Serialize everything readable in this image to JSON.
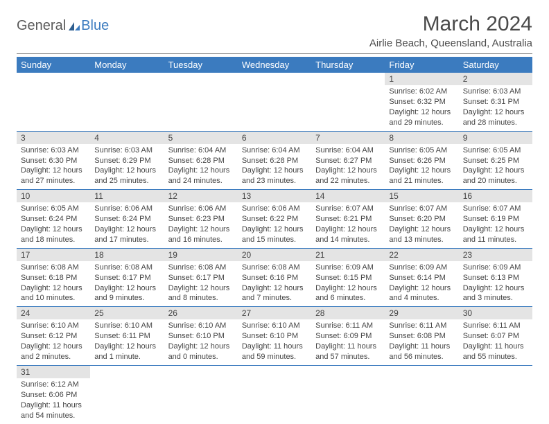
{
  "logo": {
    "general": "General",
    "blue": "Blue"
  },
  "title": "March 2024",
  "location": "Airlie Beach, Queensland, Australia",
  "colors": {
    "header_bg": "#3b7bbf",
    "header_text": "#ffffff",
    "daynum_bg": "#e4e4e4",
    "border": "#3b7bbf",
    "text": "#444444"
  },
  "weekdays": [
    "Sunday",
    "Monday",
    "Tuesday",
    "Wednesday",
    "Thursday",
    "Friday",
    "Saturday"
  ],
  "weeks": [
    [
      null,
      null,
      null,
      null,
      null,
      {
        "d": "1",
        "sr": "6:02 AM",
        "ss": "6:32 PM",
        "dl": "12 hours and 29 minutes."
      },
      {
        "d": "2",
        "sr": "6:03 AM",
        "ss": "6:31 PM",
        "dl": "12 hours and 28 minutes."
      }
    ],
    [
      {
        "d": "3",
        "sr": "6:03 AM",
        "ss": "6:30 PM",
        "dl": "12 hours and 27 minutes."
      },
      {
        "d": "4",
        "sr": "6:03 AM",
        "ss": "6:29 PM",
        "dl": "12 hours and 25 minutes."
      },
      {
        "d": "5",
        "sr": "6:04 AM",
        "ss": "6:28 PM",
        "dl": "12 hours and 24 minutes."
      },
      {
        "d": "6",
        "sr": "6:04 AM",
        "ss": "6:28 PM",
        "dl": "12 hours and 23 minutes."
      },
      {
        "d": "7",
        "sr": "6:04 AM",
        "ss": "6:27 PM",
        "dl": "12 hours and 22 minutes."
      },
      {
        "d": "8",
        "sr": "6:05 AM",
        "ss": "6:26 PM",
        "dl": "12 hours and 21 minutes."
      },
      {
        "d": "9",
        "sr": "6:05 AM",
        "ss": "6:25 PM",
        "dl": "12 hours and 20 minutes."
      }
    ],
    [
      {
        "d": "10",
        "sr": "6:05 AM",
        "ss": "6:24 PM",
        "dl": "12 hours and 18 minutes."
      },
      {
        "d": "11",
        "sr": "6:06 AM",
        "ss": "6:24 PM",
        "dl": "12 hours and 17 minutes."
      },
      {
        "d": "12",
        "sr": "6:06 AM",
        "ss": "6:23 PM",
        "dl": "12 hours and 16 minutes."
      },
      {
        "d": "13",
        "sr": "6:06 AM",
        "ss": "6:22 PM",
        "dl": "12 hours and 15 minutes."
      },
      {
        "d": "14",
        "sr": "6:07 AM",
        "ss": "6:21 PM",
        "dl": "12 hours and 14 minutes."
      },
      {
        "d": "15",
        "sr": "6:07 AM",
        "ss": "6:20 PM",
        "dl": "12 hours and 13 minutes."
      },
      {
        "d": "16",
        "sr": "6:07 AM",
        "ss": "6:19 PM",
        "dl": "12 hours and 11 minutes."
      }
    ],
    [
      {
        "d": "17",
        "sr": "6:08 AM",
        "ss": "6:18 PM",
        "dl": "12 hours and 10 minutes."
      },
      {
        "d": "18",
        "sr": "6:08 AM",
        "ss": "6:17 PM",
        "dl": "12 hours and 9 minutes."
      },
      {
        "d": "19",
        "sr": "6:08 AM",
        "ss": "6:17 PM",
        "dl": "12 hours and 8 minutes."
      },
      {
        "d": "20",
        "sr": "6:08 AM",
        "ss": "6:16 PM",
        "dl": "12 hours and 7 minutes."
      },
      {
        "d": "21",
        "sr": "6:09 AM",
        "ss": "6:15 PM",
        "dl": "12 hours and 6 minutes."
      },
      {
        "d": "22",
        "sr": "6:09 AM",
        "ss": "6:14 PM",
        "dl": "12 hours and 4 minutes."
      },
      {
        "d": "23",
        "sr": "6:09 AM",
        "ss": "6:13 PM",
        "dl": "12 hours and 3 minutes."
      }
    ],
    [
      {
        "d": "24",
        "sr": "6:10 AM",
        "ss": "6:12 PM",
        "dl": "12 hours and 2 minutes."
      },
      {
        "d": "25",
        "sr": "6:10 AM",
        "ss": "6:11 PM",
        "dl": "12 hours and 1 minute."
      },
      {
        "d": "26",
        "sr": "6:10 AM",
        "ss": "6:10 PM",
        "dl": "12 hours and 0 minutes."
      },
      {
        "d": "27",
        "sr": "6:10 AM",
        "ss": "6:10 PM",
        "dl": "11 hours and 59 minutes."
      },
      {
        "d": "28",
        "sr": "6:11 AM",
        "ss": "6:09 PM",
        "dl": "11 hours and 57 minutes."
      },
      {
        "d": "29",
        "sr": "6:11 AM",
        "ss": "6:08 PM",
        "dl": "11 hours and 56 minutes."
      },
      {
        "d": "30",
        "sr": "6:11 AM",
        "ss": "6:07 PM",
        "dl": "11 hours and 55 minutes."
      }
    ],
    [
      {
        "d": "31",
        "sr": "6:12 AM",
        "ss": "6:06 PM",
        "dl": "11 hours and 54 minutes."
      },
      null,
      null,
      null,
      null,
      null,
      null
    ]
  ],
  "labels": {
    "sunrise": "Sunrise:",
    "sunset": "Sunset:",
    "daylight": "Daylight:"
  }
}
